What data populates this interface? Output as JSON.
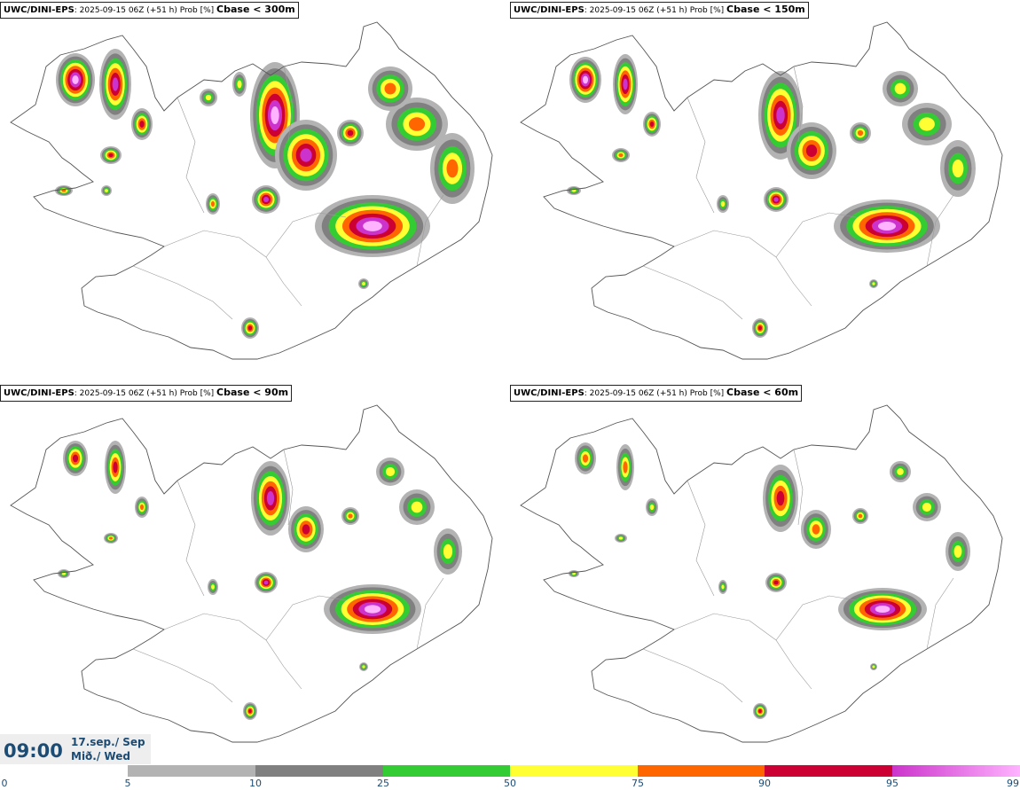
{
  "colors": {
    "p5": "#b3b3b3",
    "p10": "#808080",
    "p25": "#33cc33",
    "p50": "#ffff33",
    "p75": "#ff6600",
    "p90": "#cc0033",
    "p95": "#cc33cc",
    "p99": "#ffb3ff",
    "coast": "#555555",
    "text_blue": "#1c4b74"
  },
  "panels": [
    {
      "model": "UWC/DINI-EPS",
      "run": ": 2025-09-15 06Z (+51 h) Prob [%] ",
      "param": "Cbase < 300m"
    },
    {
      "model": "UWC/DINI-EPS",
      "run": ": 2025-09-15 06Z (+51 h) Prob [%] ",
      "param": "Cbase < 150m"
    },
    {
      "model": "UWC/DINI-EPS",
      "run": ": 2025-09-15 06Z (+51 h) Prob [%] ",
      "param": "Cbase < 90m"
    },
    {
      "model": "UWC/DINI-EPS",
      "run": ": 2025-09-15 06Z (+51 h) Prob [%] ",
      "param": "Cbase < 60m"
    }
  ],
  "valid_time": {
    "clock": "09:00",
    "date_line1": "17.sep./ Sep",
    "date_line2": "Mið./ Wed"
  },
  "colorbar": {
    "ticks": [
      "0",
      "5",
      "10",
      "25",
      "50",
      "75",
      "90",
      "95",
      "99"
    ],
    "segments": [
      "p5",
      "p10",
      "p25",
      "p50",
      "p75",
      "p90",
      "p95",
      "p99"
    ]
  }
}
